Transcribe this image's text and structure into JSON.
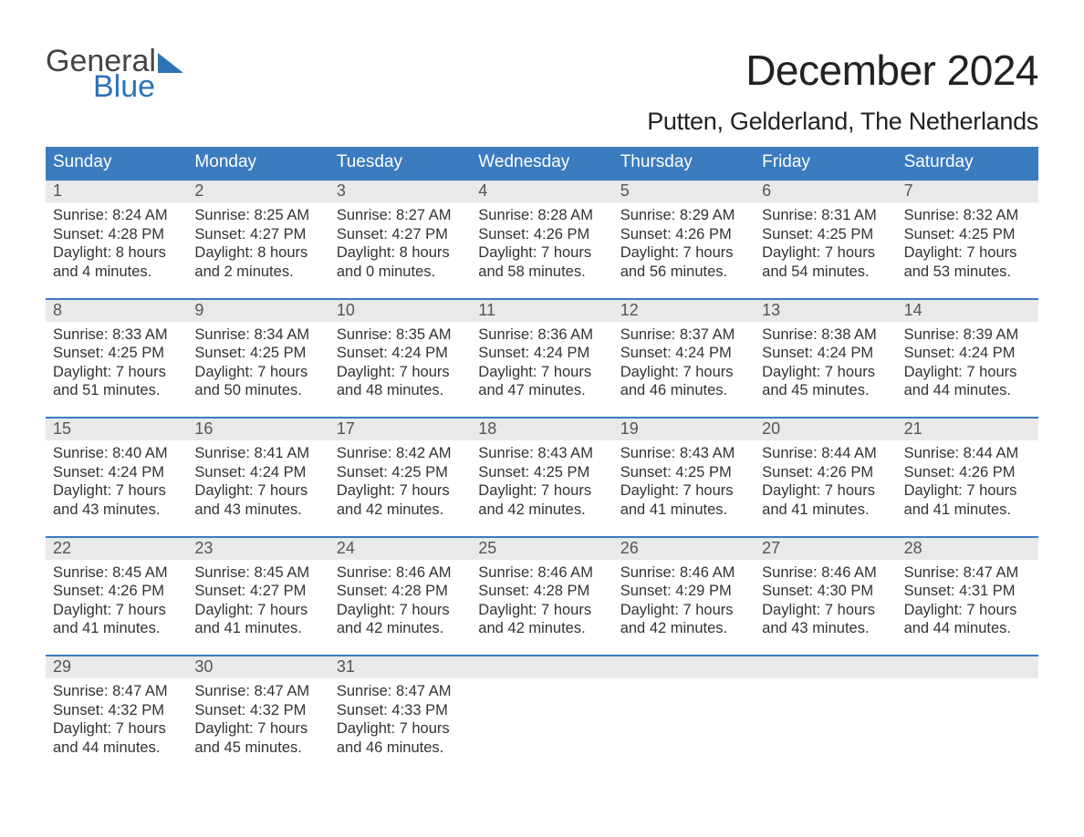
{
  "brand": {
    "word1": "General",
    "word2": "Blue",
    "text_color": "#444444",
    "accent_color": "#2d72b8"
  },
  "title": "December 2024",
  "location": "Putten, Gelderland, The Netherlands",
  "colors": {
    "header_bg": "#3b7bbf",
    "header_text": "#ffffff",
    "daynum_bg": "#e9e9e9",
    "daynum_text": "#555555",
    "body_text": "#333333",
    "rule": "#3b7bbf",
    "page_bg": "#ffffff"
  },
  "fonts": {
    "title_pt": 46,
    "location_pt": 27,
    "weekday_pt": 19,
    "daynum_pt": 18,
    "body_pt": 16.5
  },
  "calendar": {
    "type": "table",
    "columns": [
      "Sunday",
      "Monday",
      "Tuesday",
      "Wednesday",
      "Thursday",
      "Friday",
      "Saturday"
    ],
    "weeks": [
      [
        {
          "n": "1",
          "sunrise": "Sunrise: 8:24 AM",
          "sunset": "Sunset: 4:28 PM",
          "d1": "Daylight: 8 hours",
          "d2": "and 4 minutes."
        },
        {
          "n": "2",
          "sunrise": "Sunrise: 8:25 AM",
          "sunset": "Sunset: 4:27 PM",
          "d1": "Daylight: 8 hours",
          "d2": "and 2 minutes."
        },
        {
          "n": "3",
          "sunrise": "Sunrise: 8:27 AM",
          "sunset": "Sunset: 4:27 PM",
          "d1": "Daylight: 8 hours",
          "d2": "and 0 minutes."
        },
        {
          "n": "4",
          "sunrise": "Sunrise: 8:28 AM",
          "sunset": "Sunset: 4:26 PM",
          "d1": "Daylight: 7 hours",
          "d2": "and 58 minutes."
        },
        {
          "n": "5",
          "sunrise": "Sunrise: 8:29 AM",
          "sunset": "Sunset: 4:26 PM",
          "d1": "Daylight: 7 hours",
          "d2": "and 56 minutes."
        },
        {
          "n": "6",
          "sunrise": "Sunrise: 8:31 AM",
          "sunset": "Sunset: 4:25 PM",
          "d1": "Daylight: 7 hours",
          "d2": "and 54 minutes."
        },
        {
          "n": "7",
          "sunrise": "Sunrise: 8:32 AM",
          "sunset": "Sunset: 4:25 PM",
          "d1": "Daylight: 7 hours",
          "d2": "and 53 minutes."
        }
      ],
      [
        {
          "n": "8",
          "sunrise": "Sunrise: 8:33 AM",
          "sunset": "Sunset: 4:25 PM",
          "d1": "Daylight: 7 hours",
          "d2": "and 51 minutes."
        },
        {
          "n": "9",
          "sunrise": "Sunrise: 8:34 AM",
          "sunset": "Sunset: 4:25 PM",
          "d1": "Daylight: 7 hours",
          "d2": "and 50 minutes."
        },
        {
          "n": "10",
          "sunrise": "Sunrise: 8:35 AM",
          "sunset": "Sunset: 4:24 PM",
          "d1": "Daylight: 7 hours",
          "d2": "and 48 minutes."
        },
        {
          "n": "11",
          "sunrise": "Sunrise: 8:36 AM",
          "sunset": "Sunset: 4:24 PM",
          "d1": "Daylight: 7 hours",
          "d2": "and 47 minutes."
        },
        {
          "n": "12",
          "sunrise": "Sunrise: 8:37 AM",
          "sunset": "Sunset: 4:24 PM",
          "d1": "Daylight: 7 hours",
          "d2": "and 46 minutes."
        },
        {
          "n": "13",
          "sunrise": "Sunrise: 8:38 AM",
          "sunset": "Sunset: 4:24 PM",
          "d1": "Daylight: 7 hours",
          "d2": "and 45 minutes."
        },
        {
          "n": "14",
          "sunrise": "Sunrise: 8:39 AM",
          "sunset": "Sunset: 4:24 PM",
          "d1": "Daylight: 7 hours",
          "d2": "and 44 minutes."
        }
      ],
      [
        {
          "n": "15",
          "sunrise": "Sunrise: 8:40 AM",
          "sunset": "Sunset: 4:24 PM",
          "d1": "Daylight: 7 hours",
          "d2": "and 43 minutes."
        },
        {
          "n": "16",
          "sunrise": "Sunrise: 8:41 AM",
          "sunset": "Sunset: 4:24 PM",
          "d1": "Daylight: 7 hours",
          "d2": "and 43 minutes."
        },
        {
          "n": "17",
          "sunrise": "Sunrise: 8:42 AM",
          "sunset": "Sunset: 4:25 PM",
          "d1": "Daylight: 7 hours",
          "d2": "and 42 minutes."
        },
        {
          "n": "18",
          "sunrise": "Sunrise: 8:43 AM",
          "sunset": "Sunset: 4:25 PM",
          "d1": "Daylight: 7 hours",
          "d2": "and 42 minutes."
        },
        {
          "n": "19",
          "sunrise": "Sunrise: 8:43 AM",
          "sunset": "Sunset: 4:25 PM",
          "d1": "Daylight: 7 hours",
          "d2": "and 41 minutes."
        },
        {
          "n": "20",
          "sunrise": "Sunrise: 8:44 AM",
          "sunset": "Sunset: 4:26 PM",
          "d1": "Daylight: 7 hours",
          "d2": "and 41 minutes."
        },
        {
          "n": "21",
          "sunrise": "Sunrise: 8:44 AM",
          "sunset": "Sunset: 4:26 PM",
          "d1": "Daylight: 7 hours",
          "d2": "and 41 minutes."
        }
      ],
      [
        {
          "n": "22",
          "sunrise": "Sunrise: 8:45 AM",
          "sunset": "Sunset: 4:26 PM",
          "d1": "Daylight: 7 hours",
          "d2": "and 41 minutes."
        },
        {
          "n": "23",
          "sunrise": "Sunrise: 8:45 AM",
          "sunset": "Sunset: 4:27 PM",
          "d1": "Daylight: 7 hours",
          "d2": "and 41 minutes."
        },
        {
          "n": "24",
          "sunrise": "Sunrise: 8:46 AM",
          "sunset": "Sunset: 4:28 PM",
          "d1": "Daylight: 7 hours",
          "d2": "and 42 minutes."
        },
        {
          "n": "25",
          "sunrise": "Sunrise: 8:46 AM",
          "sunset": "Sunset: 4:28 PM",
          "d1": "Daylight: 7 hours",
          "d2": "and 42 minutes."
        },
        {
          "n": "26",
          "sunrise": "Sunrise: 8:46 AM",
          "sunset": "Sunset: 4:29 PM",
          "d1": "Daylight: 7 hours",
          "d2": "and 42 minutes."
        },
        {
          "n": "27",
          "sunrise": "Sunrise: 8:46 AM",
          "sunset": "Sunset: 4:30 PM",
          "d1": "Daylight: 7 hours",
          "d2": "and 43 minutes."
        },
        {
          "n": "28",
          "sunrise": "Sunrise: 8:47 AM",
          "sunset": "Sunset: 4:31 PM",
          "d1": "Daylight: 7 hours",
          "d2": "and 44 minutes."
        }
      ],
      [
        {
          "n": "29",
          "sunrise": "Sunrise: 8:47 AM",
          "sunset": "Sunset: 4:32 PM",
          "d1": "Daylight: 7 hours",
          "d2": "and 44 minutes."
        },
        {
          "n": "30",
          "sunrise": "Sunrise: 8:47 AM",
          "sunset": "Sunset: 4:32 PM",
          "d1": "Daylight: 7 hours",
          "d2": "and 45 minutes."
        },
        {
          "n": "31",
          "sunrise": "Sunrise: 8:47 AM",
          "sunset": "Sunset: 4:33 PM",
          "d1": "Daylight: 7 hours",
          "d2": "and 46 minutes."
        },
        {
          "n": "",
          "sunrise": "",
          "sunset": "",
          "d1": "",
          "d2": ""
        },
        {
          "n": "",
          "sunrise": "",
          "sunset": "",
          "d1": "",
          "d2": ""
        },
        {
          "n": "",
          "sunrise": "",
          "sunset": "",
          "d1": "",
          "d2": ""
        },
        {
          "n": "",
          "sunrise": "",
          "sunset": "",
          "d1": "",
          "d2": ""
        }
      ]
    ]
  }
}
